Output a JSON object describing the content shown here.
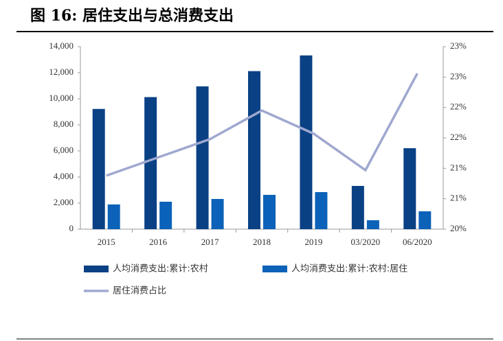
{
  "chart_data": {
    "type": "bar",
    "title": "图 16: 居住支出与总消费支出",
    "categories": [
      "2015",
      "2016",
      "2017",
      "2018",
      "2019",
      "03/2020",
      "06/2020"
    ],
    "series": [
      {
        "name": "人均消费支出:累计:农村",
        "color": "#0a4185",
        "type": "bar",
        "values": [
          9222,
          10130,
          10955,
          12124,
          13328,
          3316,
          6211
        ]
      },
      {
        "name": "人均消费支出:累计:农村:居住",
        "color": "#0c62b8",
        "type": "bar",
        "values": [
          1895,
          2105,
          2316,
          2632,
          2842,
          684,
          1368
        ]
      },
      {
        "name": "居住消费占比",
        "color": "#9fa8cf",
        "type": "line",
        "axis": "y2",
        "values": [
          20.88,
          21.18,
          21.48,
          21.95,
          21.57,
          20.97,
          22.56
        ]
      }
    ],
    "ylim": [
      0,
      14000
    ],
    "yticks": [
      0,
      {
        "value": 2000,
        "label": "2,000"
      },
      {
        "value": 4000,
        "label": "4,000"
      },
      {
        "value": 6000,
        "label": "6,000"
      },
      {
        "value": 8000,
        "label": "8,000"
      },
      {
        "value": 10000,
        "label": "10,000"
      },
      {
        "value": 12000,
        "label": "12,000"
      },
      {
        "value": 14000,
        "label": "14,000"
      }
    ],
    "y2lim": [
      20,
      23
    ],
    "y2ticks": [
      {
        "value": 20,
        "label": "20%"
      },
      {
        "value": 20.5,
        "label": "21%"
      },
      {
        "value": 21,
        "label": "21%"
      },
      {
        "value": 21.5,
        "label": "22%"
      },
      {
        "value": 22,
        "label": "22%"
      },
      {
        "value": 22.5,
        "label": "23%"
      },
      {
        "value": 23,
        "label": "23%"
      }
    ],
    "legend": "bottom"
  }
}
